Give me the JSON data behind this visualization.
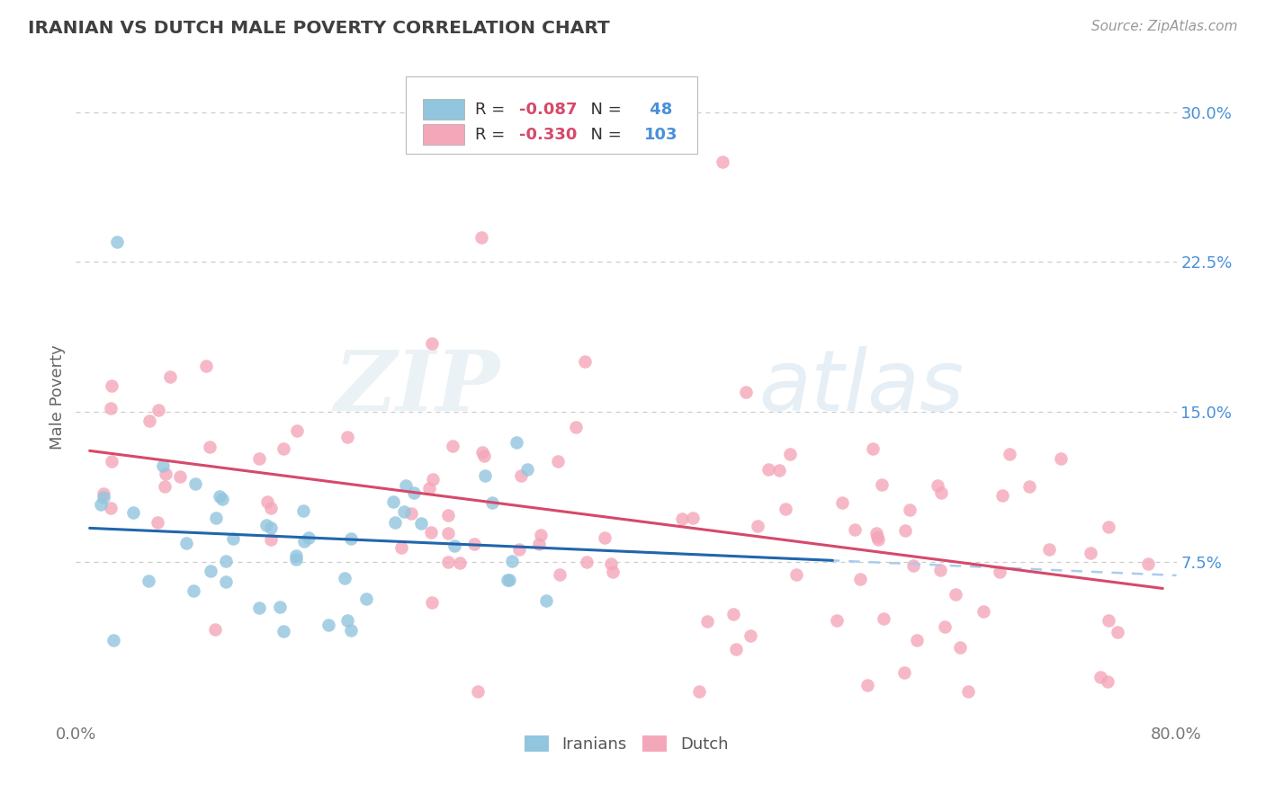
{
  "title": "IRANIAN VS DUTCH MALE POVERTY CORRELATION CHART",
  "source": "Source: ZipAtlas.com",
  "ylabel": "Male Poverty",
  "xlim": [
    0.0,
    0.8
  ],
  "ylim": [
    -0.005,
    0.32
  ],
  "yticks": [
    0.075,
    0.15,
    0.225,
    0.3
  ],
  "ytick_labels": [
    "7.5%",
    "15.0%",
    "22.5%",
    "30.0%"
  ],
  "iranian_color": "#92c5de",
  "dutch_color": "#f4a7b9",
  "iranian_R": -0.087,
  "iranian_N": 48,
  "dutch_R": -0.33,
  "dutch_N": 103,
  "trend_iranian_color": "#2166ac",
  "trend_dutch_color": "#d6496a",
  "background_color": "#ffffff",
  "grid_color": "#cccccc",
  "title_color": "#404040",
  "watermark_zip": "ZIP",
  "watermark_atlas": "atlas",
  "axis_tick_color": "#777777",
  "ytick_color": "#4a90d9"
}
